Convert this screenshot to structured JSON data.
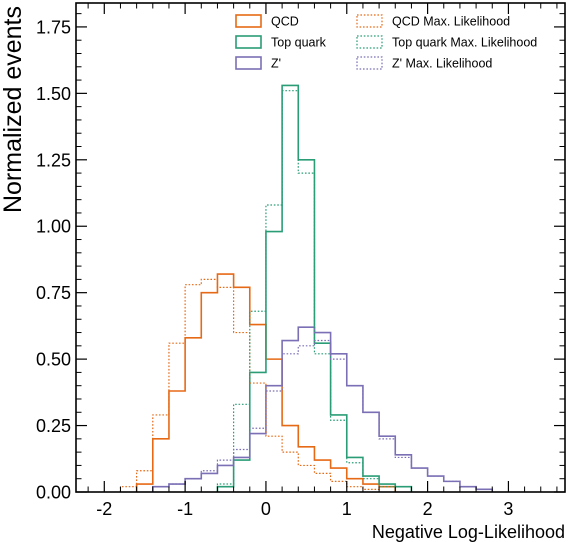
{
  "chart_data": {
    "type": "histogram-step",
    "xlabel": "Negative Log-Likelihood",
    "ylabel": "Normalized events",
    "xlim": [
      -2.35,
      3.7
    ],
    "ylim": [
      0,
      1.84
    ],
    "xticks": [
      -2,
      -1,
      0,
      1,
      2,
      3
    ],
    "xtick_labels": [
      "-2",
      "-1",
      "0",
      "1",
      "2",
      "3"
    ],
    "yticks": [
      0,
      0.25,
      0.5,
      0.75,
      1.0,
      1.25,
      1.5,
      1.75
    ],
    "ytick_labels": [
      "0.00",
      "0.25",
      "0.50",
      "0.75",
      "1.00",
      "1.25",
      "1.50",
      "1.75"
    ],
    "bin_width": 0.2,
    "legend_position": "top-right",
    "series": [
      {
        "name": "QCD",
        "color": "#e66a16",
        "style": "solid",
        "x_start": -1.6,
        "values": [
          0.03,
          0.2,
          0.38,
          0.58,
          0.75,
          0.82,
          0.77,
          0.63,
          0.5,
          0.25,
          0.17,
          0.12,
          0.09,
          0.05,
          0.03,
          0.02
        ]
      },
      {
        "name": "Top quark",
        "color": "#2a9d76",
        "style": "solid",
        "x_start": -0.6,
        "values": [
          0.02,
          0.12,
          0.45,
          0.98,
          1.53,
          1.25,
          0.56,
          0.29,
          0.13,
          0.06,
          0.03,
          0.02
        ]
      },
      {
        "name": "Z'",
        "color": "#7b6fb5",
        "style": "solid",
        "x_start": -1.4,
        "values": [
          0.02,
          0.03,
          0.05,
          0.07,
          0.1,
          0.13,
          0.22,
          0.4,
          0.57,
          0.62,
          0.6,
          0.52,
          0.4,
          0.3,
          0.21,
          0.14,
          0.09,
          0.06,
          0.04,
          0.02,
          0.01
        ]
      },
      {
        "name": "QCD Max. Likelihood",
        "color": "#e66a16",
        "style": "dotted",
        "x_start": -1.8,
        "values": [
          0.02,
          0.08,
          0.29,
          0.56,
          0.78,
          0.8,
          0.77,
          0.6,
          0.41,
          0.21,
          0.15,
          0.1,
          0.07,
          0.04,
          0.02,
          0.01
        ]
      },
      {
        "name": "Top quark Max. Likelihood",
        "color": "#2a9d76",
        "style": "dotted",
        "x_start": -0.6,
        "values": [
          0.03,
          0.33,
          0.68,
          1.08,
          1.51,
          1.2,
          0.52,
          0.27,
          0.11,
          0.05,
          0.02
        ]
      },
      {
        "name": "Z' Max. Likelihood",
        "color": "#7b6fb5",
        "style": "dotted",
        "x_start": -1.4,
        "values": [
          0.02,
          0.03,
          0.05,
          0.08,
          0.12,
          0.16,
          0.24,
          0.38,
          0.52,
          0.55,
          0.57,
          0.5,
          0.4,
          0.3,
          0.2,
          0.13,
          0.09,
          0.06,
          0.04,
          0.02,
          0.01
        ]
      }
    ]
  }
}
